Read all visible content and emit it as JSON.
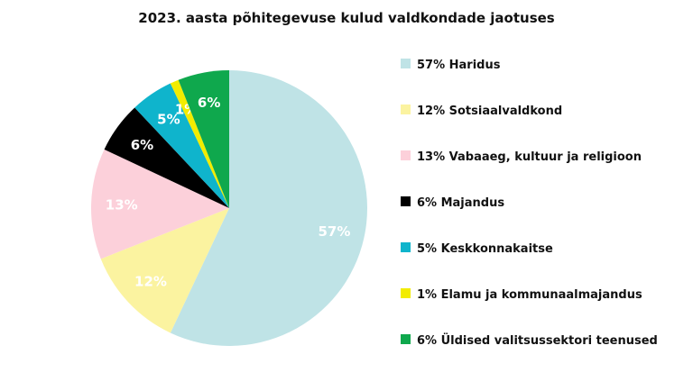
{
  "chart_data": {
    "type": "pie",
    "title": "2023. aasta põhitegevuse kulud valdkondade jaotuses",
    "slices": [
      {
        "label": "57%",
        "value": 57,
        "color": "#bfe3e6",
        "label_color": "#ffffff",
        "legend": "57% Haridus"
      },
      {
        "label": "12%",
        "value": 12,
        "color": "#fbf3a0",
        "label_color": "#ffffff",
        "legend": "12% Sotsiaalvaldkond"
      },
      {
        "label": "13%",
        "value": 13,
        "color": "#fcd0da",
        "label_color": "#ffffff",
        "legend": "13% Vabaaeg, kultuur ja religioon"
      },
      {
        "label": "6%",
        "value": 6,
        "color": "#000000",
        "label_color": "#ffffff",
        "legend": "6% Majandus"
      },
      {
        "label": "5%",
        "value": 5,
        "color": "#0fb4cc",
        "label_color": "#ffffff",
        "legend": "5% Keskkonnakaitse"
      },
      {
        "label": "1%",
        "value": 1,
        "color": "#f2ec00",
        "label_color": "#ffffff",
        "legend": "1% Elamu ja kommunaalmajandus"
      },
      {
        "label": "6%",
        "value": 6,
        "color": "#0fa84d",
        "label_color": "#ffffff",
        "legend": "6% Üldised valitsussektori teenused"
      }
    ],
    "legend_position": "right",
    "start": "12 o'clock",
    "direction": "clockwise"
  }
}
